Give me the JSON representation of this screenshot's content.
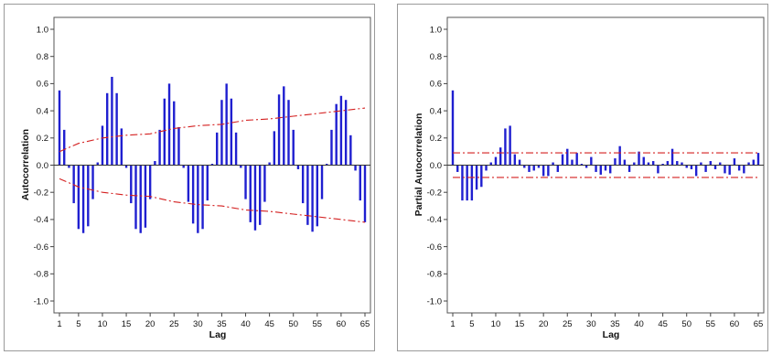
{
  "chart_data": [
    {
      "id": "acf",
      "type": "bar",
      "xlabel": "Lag",
      "ylabel": "Autocorrelation",
      "ylim": [
        -1.0,
        1.0
      ],
      "yticks": [
        "1.0",
        "0.8",
        "0.6",
        "0.4",
        "0.2",
        "0.0",
        "-0.2",
        "-0.4",
        "-0.6",
        "-0.8",
        "-1.0"
      ],
      "xticks": [
        1,
        5,
        10,
        15,
        20,
        25,
        30,
        35,
        40,
        45,
        50,
        55,
        60,
        65
      ],
      "xlim": [
        1,
        65
      ],
      "grid": false,
      "lags": [
        1,
        2,
        3,
        4,
        5,
        6,
        7,
        8,
        9,
        10,
        11,
        12,
        13,
        14,
        15,
        16,
        17,
        18,
        19,
        20,
        21,
        22,
        23,
        24,
        25,
        26,
        27,
        28,
        29,
        30,
        31,
        32,
        33,
        34,
        35,
        36,
        37,
        38,
        39,
        40,
        41,
        42,
        43,
        44,
        45,
        46,
        47,
        48,
        49,
        50,
        51,
        52,
        53,
        54,
        55,
        56,
        57,
        58,
        59,
        60,
        61,
        62,
        63,
        64,
        65
      ],
      "values": [
        0.55,
        0.26,
        -0.02,
        -0.28,
        -0.47,
        -0.5,
        -0.45,
        -0.25,
        0.02,
        0.29,
        0.53,
        0.65,
        0.53,
        0.27,
        -0.02,
        -0.28,
        -0.47,
        -0.5,
        -0.46,
        -0.25,
        0.03,
        0.26,
        0.49,
        0.6,
        0.47,
        0.28,
        -0.02,
        -0.27,
        -0.43,
        -0.5,
        -0.47,
        -0.26,
        0.01,
        0.24,
        0.48,
        0.6,
        0.49,
        0.24,
        -0.02,
        -0.25,
        -0.42,
        -0.48,
        -0.44,
        -0.27,
        0.02,
        0.25,
        0.52,
        0.58,
        0.48,
        0.26,
        -0.03,
        -0.28,
        -0.44,
        -0.49,
        -0.45,
        -0.25,
        0.01,
        0.26,
        0.45,
        0.51,
        0.48,
        0.22,
        -0.04,
        -0.26,
        -0.42
      ],
      "limits": {
        "lags": [
          1,
          3,
          5,
          10,
          15,
          20,
          25,
          30,
          35,
          40,
          45,
          50,
          55,
          60,
          65
        ],
        "upper": [
          0.1,
          0.13,
          0.16,
          0.2,
          0.22,
          0.23,
          0.27,
          0.29,
          0.3,
          0.33,
          0.34,
          0.36,
          0.38,
          0.4,
          0.42
        ],
        "lower": [
          -0.1,
          -0.13,
          -0.16,
          -0.2,
          -0.22,
          -0.23,
          -0.27,
          -0.29,
          -0.3,
          -0.33,
          -0.34,
          -0.36,
          -0.38,
          -0.4,
          -0.42
        ]
      },
      "colors": {
        "bars": "#1f1fd0",
        "limits": "#d42020"
      }
    },
    {
      "id": "pacf",
      "type": "bar",
      "xlabel": "Lag",
      "ylabel": "Partial Autocorrelation",
      "ylim": [
        -1.0,
        1.0
      ],
      "yticks": [
        "1.0",
        "0.8",
        "0.6",
        "0.4",
        "0.2",
        "0.0",
        "-0.2",
        "-0.4",
        "-0.6",
        "-0.8",
        "-1.0"
      ],
      "xticks": [
        1,
        5,
        10,
        15,
        20,
        25,
        30,
        35,
        40,
        45,
        50,
        55,
        60,
        65
      ],
      "xlim": [
        1,
        65
      ],
      "grid": false,
      "lags": [
        1,
        2,
        3,
        4,
        5,
        6,
        7,
        8,
        9,
        10,
        11,
        12,
        13,
        14,
        15,
        16,
        17,
        18,
        19,
        20,
        21,
        22,
        23,
        24,
        25,
        26,
        27,
        28,
        29,
        30,
        31,
        32,
        33,
        34,
        35,
        36,
        37,
        38,
        39,
        40,
        41,
        42,
        43,
        44,
        45,
        46,
        47,
        48,
        49,
        50,
        51,
        52,
        53,
        54,
        55,
        56,
        57,
        58,
        59,
        60,
        61,
        62,
        63,
        64,
        65
      ],
      "values": [
        0.55,
        -0.05,
        -0.26,
        -0.26,
        -0.26,
        -0.18,
        -0.16,
        -0.04,
        0.02,
        0.06,
        0.13,
        0.27,
        0.29,
        0.08,
        0.04,
        -0.02,
        -0.05,
        -0.04,
        -0.02,
        -0.08,
        -0.08,
        0.02,
        -0.05,
        0.08,
        0.12,
        0.04,
        0.09,
        0.01,
        -0.02,
        0.06,
        -0.05,
        -0.07,
        -0.04,
        -0.06,
        0.05,
        0.14,
        0.04,
        -0.05,
        0.02,
        0.1,
        0.06,
        0.02,
        0.03,
        -0.06,
        0.01,
        0.03,
        0.12,
        0.03,
        0.02,
        -0.02,
        -0.03,
        -0.08,
        0.02,
        -0.05,
        0.03,
        -0.03,
        0.02,
        -0.06,
        -0.07,
        0.05,
        -0.04,
        -0.06,
        0.02,
        0.04,
        0.09
      ],
      "limits": {
        "lags": [
          1,
          65
        ],
        "upper": [
          0.09,
          0.09
        ],
        "lower": [
          -0.09,
          -0.09
        ]
      },
      "colors": {
        "bars": "#1f1fd0",
        "limits": "#d42020"
      }
    }
  ]
}
